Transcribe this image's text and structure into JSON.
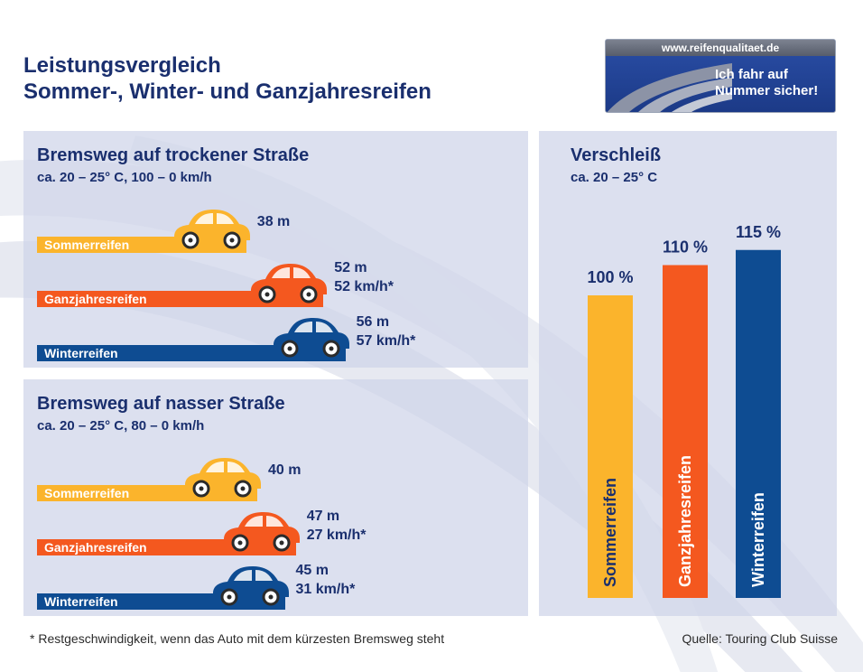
{
  "title": {
    "line1": "Leistungsvergleich",
    "line2": "Sommer-, Winter- und Ganzjahresreifen"
  },
  "logo": {
    "url": "www.reifenqualitaet.de",
    "slogan_line1": "Ich fahr auf",
    "slogan_line2": "Nummer sicher!"
  },
  "colors": {
    "sommerreifen": "#fbb42c",
    "ganzjahresreifen": "#f4581f",
    "winterreifen": "#0e4c92",
    "title": "#1a2f6e",
    "panel": "#ced4e9"
  },
  "footnote": "* Restgeschwindigkeit, wenn das Auto mit dem kürzesten Bremsweg steht",
  "source": "Quelle: Touring Club Suisse",
  "chart_data": [
    {
      "type": "bar",
      "orientation": "horizontal",
      "title": "Bremsweg auf trockener Straße",
      "subtitle": "ca. 20 – 25° C, 100 – 0 km/h",
      "categories": [
        "Sommerreifen",
        "Ganzjahresreifen",
        "Winterreifen"
      ],
      "values": [
        38,
        52,
        56
      ],
      "unit": "m",
      "residual_speed": [
        null,
        52,
        57
      ],
      "value_labels": [
        "38 m",
        "52 m",
        "56 m"
      ],
      "speed_labels": [
        "",
        "52 km/h*",
        "57 km/h*"
      ]
    },
    {
      "type": "bar",
      "orientation": "horizontal",
      "title": "Bremsweg auf nasser Straße",
      "subtitle": "ca. 20 – 25° C, 80 – 0 km/h",
      "categories": [
        "Sommerreifen",
        "Ganzjahresreifen",
        "Winterreifen"
      ],
      "values": [
        40,
        47,
        45
      ],
      "unit": "m",
      "residual_speed": [
        null,
        27,
        31
      ],
      "value_labels": [
        "40 m",
        "47 m",
        "45 m"
      ],
      "speed_labels": [
        "",
        "27 km/h*",
        "31 km/h*"
      ]
    },
    {
      "type": "bar",
      "orientation": "vertical",
      "title": "Verschleiß",
      "subtitle": "ca. 20 – 25° C",
      "categories": [
        "Sommerreifen",
        "Ganzjahresreifen",
        "Winterreifen"
      ],
      "values": [
        100,
        110,
        115
      ],
      "unit": "%",
      "value_labels": [
        "100 %",
        "110 %",
        "115 %"
      ]
    }
  ]
}
